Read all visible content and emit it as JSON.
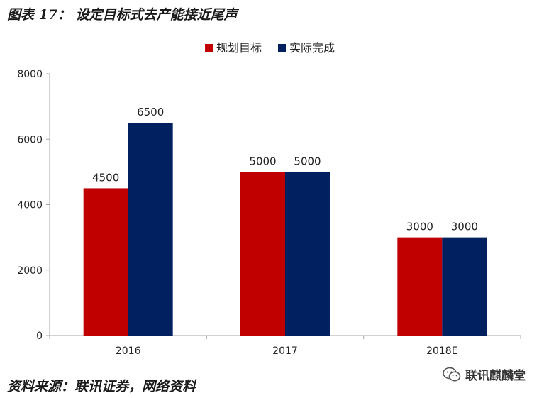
{
  "header": {
    "title": "图表 17： 设定目标式去产能接近尾声"
  },
  "footer": {
    "source": "资料来源：联讯证券，网络资料",
    "watermark": "联讯麒麟堂"
  },
  "colors": {
    "series_1": "#c00000",
    "series_2": "#002060",
    "axis": "#a6a6a6"
  },
  "chart_data": {
    "type": "bar",
    "title": "",
    "xlabel": "",
    "ylabel": "",
    "categories": [
      "2016",
      "2017",
      "2018E"
    ],
    "series": [
      {
        "name": "规划目标",
        "values": [
          4500,
          5000,
          3000
        ]
      },
      {
        "name": "实际完成",
        "values": [
          6500,
          5000,
          3000
        ]
      }
    ],
    "ylim": [
      0,
      8000
    ],
    "yticks": [
      0,
      2000,
      4000,
      6000,
      8000
    ],
    "grid": false,
    "legend": "top-center",
    "data_labels": true
  }
}
